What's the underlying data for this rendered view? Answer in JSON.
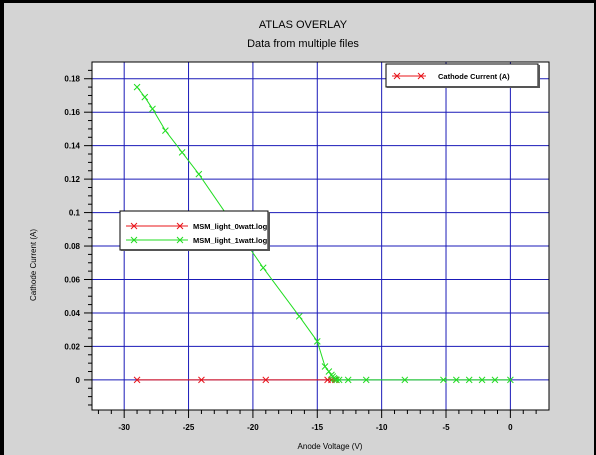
{
  "chart_data": {
    "type": "line",
    "title": "ATLAS OVERLAY",
    "subtitle": "Data from multiple files",
    "xlabel": "Anode Voltage (V)",
    "ylabel": "Cathode Current (A)",
    "xlim": [
      -32.5,
      3
    ],
    "ylim": [
      -0.018,
      0.19
    ],
    "x_ticks": [
      -30,
      -25,
      -20,
      -15,
      -10,
      -5,
      0
    ],
    "y_ticks": [
      0,
      0.02,
      0.04,
      0.06,
      0.08,
      0.1,
      0.12,
      0.14,
      0.16,
      0.18
    ],
    "x_tick_labels": [
      "-30",
      "-25",
      "-20",
      "-15",
      "-10",
      "-5",
      "0"
    ],
    "y_tick_labels": [
      "0",
      "0.02",
      "0.04",
      "0.06",
      "0.08",
      "0.1",
      "0.12",
      "0.14",
      "0.16",
      "0.18"
    ],
    "grid": true,
    "top_legend": {
      "label": "Cathode Current (A)",
      "color": "#e8141a"
    },
    "series": [
      {
        "name": "MSM_light_0watt.log",
        "color": "#e8141a",
        "x": [
          -29,
          -24,
          -19,
          -14.2,
          -13.9,
          -13.6
        ],
        "y": [
          0,
          0,
          0,
          0,
          0,
          0
        ]
      },
      {
        "name": "MSM_light_1watt.log",
        "color": "#22dd22",
        "x": [
          -29,
          -28.4,
          -27.8,
          -26.8,
          -25.5,
          -24.2,
          -19.2,
          -16.4,
          -15,
          -14.4,
          -14.1,
          -13.9,
          -13.8,
          -13.7,
          -13.6,
          -13.5,
          -13.3,
          -12.6,
          -11.2,
          -8.2,
          -5.2,
          -4.2,
          -3.2,
          -2.2,
          -1.2,
          0
        ],
        "y": [
          0.175,
          0.169,
          0.162,
          0.149,
          0.136,
          0.123,
          0.067,
          0.038,
          0.023,
          0.008,
          0.005,
          0.003,
          0.002,
          0.001,
          0.0005,
          0,
          0,
          0,
          0,
          0,
          0,
          0,
          0,
          0,
          0,
          0
        ]
      }
    ]
  }
}
